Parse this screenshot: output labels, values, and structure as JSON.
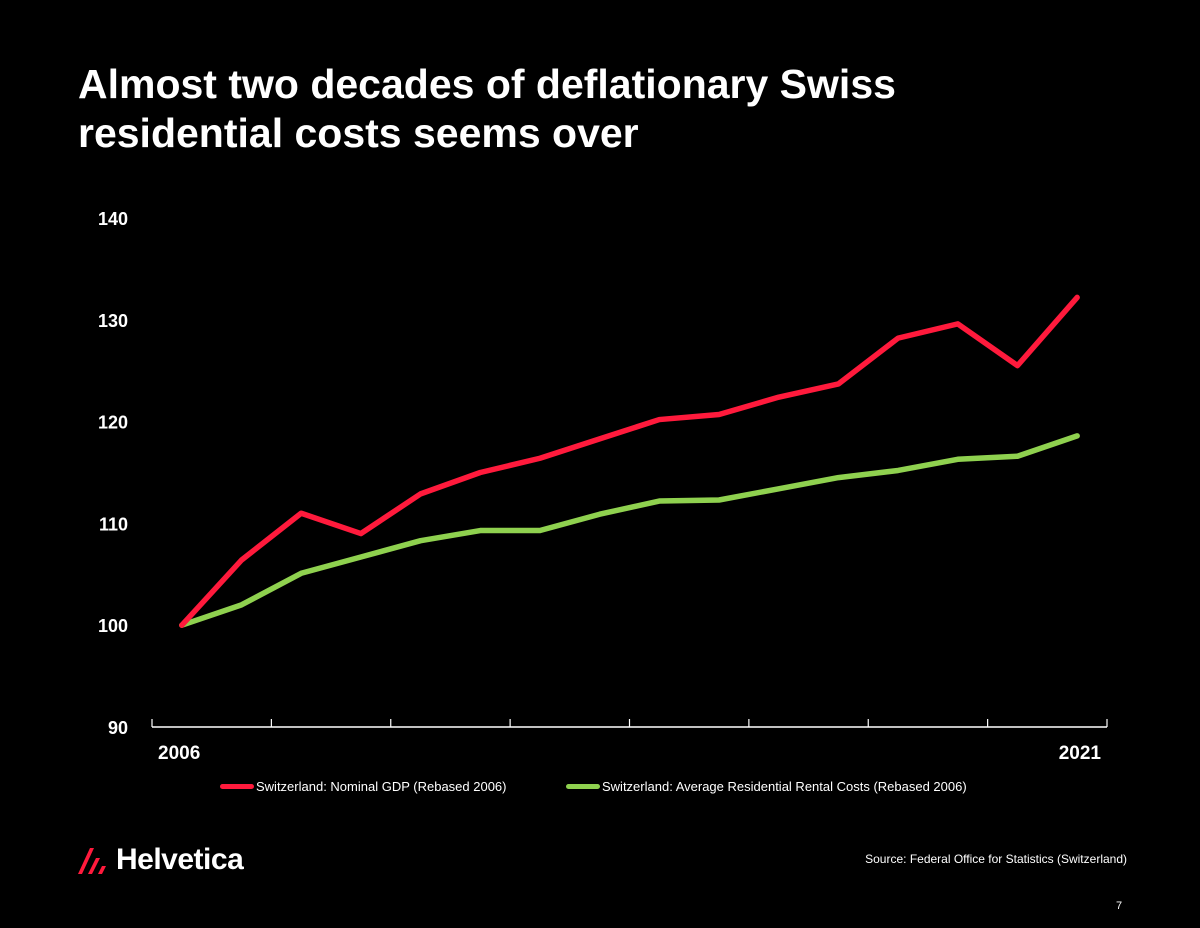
{
  "slide": {
    "title": "Almost two decades of deflationary Swiss residential costs seems over",
    "source": "Source: Federal Office for Statistics (Switzerland)",
    "logo_text": "Helvetica",
    "page_number": "7",
    "brand_color": "#ff1a3c"
  },
  "chart_data": {
    "type": "line",
    "x": [
      2006,
      2007,
      2008,
      2009,
      2010,
      2011,
      2012,
      2013,
      2014,
      2015,
      2016,
      2017,
      2018,
      2019,
      2020,
      2021
    ],
    "x_tick_labels": [
      "2006",
      "2021"
    ],
    "y_ticks": [
      90,
      100,
      110,
      120,
      130,
      140
    ],
    "ylim": [
      90,
      140
    ],
    "grid": false,
    "legend_position": "bottom",
    "series": [
      {
        "name": "Switzerland: Nominal GDP (Rebased 2006)",
        "color": "#ff1a3c",
        "values": [
          100,
          106.4,
          111.0,
          109.0,
          112.9,
          115.0,
          116.4,
          118.3,
          120.2,
          120.7,
          122.4,
          123.7,
          128.2,
          129.6,
          125.5,
          132.2
        ]
      },
      {
        "name": "Switzerland: Average Residential Rental Costs (Rebased 2006)",
        "color": "#8fd14f",
        "values": [
          100,
          102.0,
          105.1,
          106.7,
          108.3,
          109.3,
          109.3,
          110.9,
          112.2,
          112.3,
          113.4,
          114.5,
          115.2,
          116.3,
          116.6,
          118.6
        ]
      }
    ]
  }
}
